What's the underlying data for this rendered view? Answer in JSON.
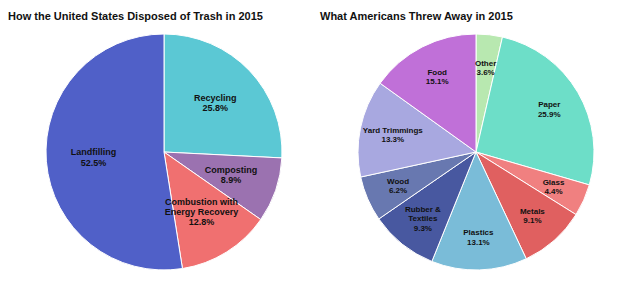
{
  "chart_data": [
    {
      "type": "pie",
      "title": "How the United States Disposed of Trash in 2015",
      "categories": [
        "Recycling",
        "Composting",
        "Combustion with\nEnergy Recovery",
        "Landfilling"
      ],
      "values": [
        25.8,
        8.9,
        12.8,
        52.5
      ],
      "value_labels": [
        "25.8%",
        "8.9%",
        "12.8%",
        "52.5%"
      ],
      "colors": [
        "#5BC8D4",
        "#9B72B0",
        "#F07070",
        "#5060C8"
      ],
      "data_labels": true
    },
    {
      "type": "pie",
      "title": "What Americans Threw Away in 2015",
      "categories": [
        "Other",
        "Paper",
        "Glass",
        "Metals",
        "Plastics",
        "Rubber &\nTextiles",
        "Wood",
        "Yard Trimmings",
        "Food"
      ],
      "values": [
        3.6,
        25.9,
        4.4,
        9.1,
        13.1,
        9.3,
        6.2,
        13.3,
        15.1
      ],
      "value_labels": [
        "3.6%",
        "25.9%",
        "4.4%",
        "9.1%",
        "13.1%",
        "9.3%",
        "6.2%",
        "13.3%",
        "15.1%"
      ],
      "colors": [
        "#B8E8B0",
        "#6DDEC8",
        "#F08080",
        "#E06060",
        "#7ABCD8",
        "#4858A0",
        "#6878B0",
        "#A8A8E0",
        "#C070D8"
      ],
      "data_labels": true
    }
  ]
}
